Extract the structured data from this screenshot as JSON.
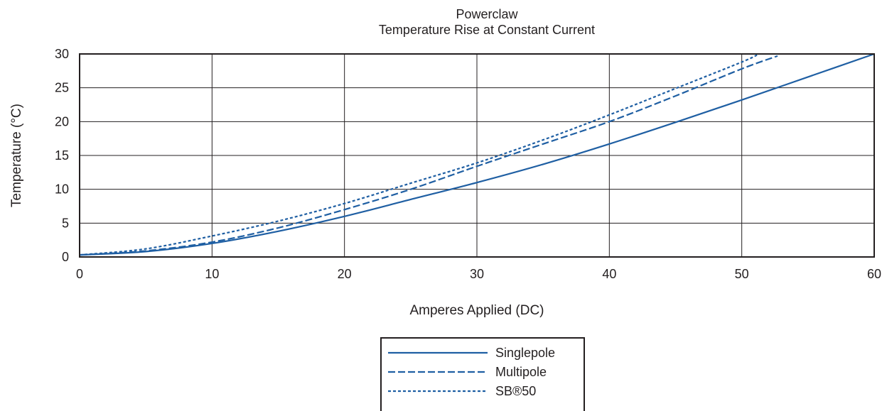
{
  "chart_data": {
    "type": "line",
    "title": "Powerclaw",
    "subtitle": "Temperature Rise at Constant Current",
    "xlabel": "Amperes Applied (DC)",
    "ylabel": "Temperature (°C)",
    "xlim": [
      0,
      60
    ],
    "ylim": [
      0,
      30
    ],
    "x_ticks": [
      "0",
      "10",
      "20",
      "30",
      "40",
      "50",
      "60"
    ],
    "y_ticks": [
      "0",
      "5",
      "10",
      "15",
      "20",
      "25",
      "30"
    ],
    "grid": true,
    "legend_position": "bottom-center",
    "series": [
      {
        "name": "Singlepole",
        "style": "solid",
        "color": "#1f5fa3",
        "x": [
          0,
          5,
          10,
          15,
          20,
          25,
          30,
          35,
          40,
          45,
          50,
          55,
          60
        ],
        "y": [
          0.3,
          0.8,
          2.0,
          3.8,
          6.0,
          8.5,
          11.0,
          13.7,
          16.7,
          19.9,
          23.2,
          26.6,
          30.0
        ]
      },
      {
        "name": "Multipole",
        "style": "dashed",
        "color": "#1f5fa3",
        "x": [
          0,
          5,
          10,
          15,
          20,
          25,
          30,
          35,
          40,
          45,
          50,
          52.7
        ],
        "y": [
          0.3,
          0.9,
          2.2,
          4.3,
          7.0,
          10.0,
          13.4,
          16.7,
          20.0,
          23.8,
          27.8,
          29.7
        ]
      },
      {
        "name": "SB®50",
        "style": "dotted",
        "color": "#1f5fa3",
        "x": [
          0,
          5,
          10,
          15,
          20,
          25,
          30,
          35,
          40,
          45,
          50,
          51.2
        ],
        "y": [
          0.3,
          1.2,
          3.1,
          5.3,
          7.9,
          10.9,
          13.9,
          17.3,
          21.0,
          24.9,
          28.8,
          29.9
        ]
      }
    ]
  }
}
